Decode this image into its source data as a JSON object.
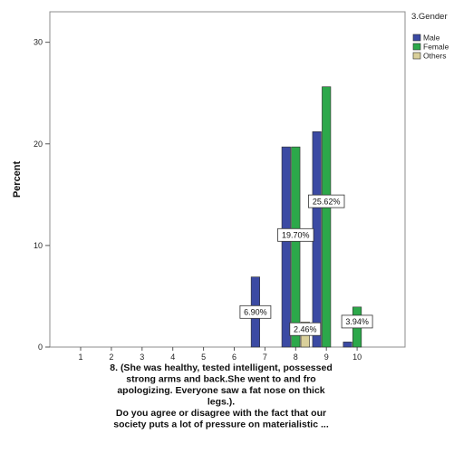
{
  "chart_data": {
    "type": "bar",
    "categories": [
      "1",
      "2",
      "3",
      "4",
      "5",
      "6",
      "7",
      "8",
      "9",
      "10"
    ],
    "series": [
      {
        "name": "Male",
        "color": "#3b4aa3",
        "values": [
          0,
          0,
          0,
          0,
          0,
          0,
          6.9,
          19.7,
          21.2,
          0.5
        ]
      },
      {
        "name": "Female",
        "color": "#2ca84a",
        "values": [
          0,
          0,
          0,
          0,
          0,
          0,
          0,
          19.7,
          25.62,
          3.94
        ]
      },
      {
        "name": "Others",
        "color": "#d9cf9a",
        "values": [
          0,
          0,
          0,
          0,
          0,
          0,
          0,
          2.46,
          0,
          0
        ]
      }
    ],
    "data_labels": [
      {
        "category": "7",
        "series": "Male",
        "value": 6.9,
        "text": "6.90%"
      },
      {
        "category": "8",
        "series": "Female",
        "value": 19.7,
        "text": "19.70%"
      },
      {
        "category": "8",
        "series": "Others",
        "value": 2.46,
        "text": "2.46%"
      },
      {
        "category": "9",
        "series": "Female",
        "value": 25.62,
        "text": "25.62%"
      },
      {
        "category": "10",
        "series": "Female",
        "value": 3.94,
        "text": "3.94%"
      }
    ],
    "ylabel": "Percent",
    "ylim": [
      0,
      33
    ],
    "yticks": [
      0,
      10,
      20,
      30
    ],
    "legend_title": "3.Gender",
    "legend_position": "right",
    "xlabel_lines": [
      "8. (She was healthy, tested intelligent,  possessed",
      "strong arms and back.She went to and fro",
      "apologizing.  Everyone saw a fat nose on thick",
      "legs.).",
      "Do you agree  or disagree with the fact that our",
      "society puts a lot of pressure on materialistic ..."
    ],
    "grid": false
  }
}
